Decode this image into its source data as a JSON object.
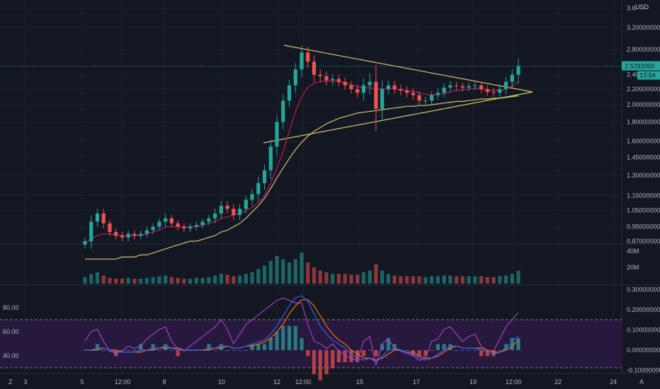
{
  "chart_data": {
    "type": "candlestick",
    "currency": "USD",
    "colors": {
      "background": "#131722",
      "up": "#26a69a",
      "down": "#ef5350",
      "ma_fast": "#c2185b",
      "ma_slow": "#d4c56a",
      "trendline": "#d4c56a",
      "rsi": "#b040d0",
      "osc_fast": "#2962ff",
      "osc_slow": "#ff6d00",
      "band_fill": "#2a1a40",
      "price_tag": "#26a69a"
    },
    "x_ticks": [
      "3",
      "5",
      "12:00",
      "8",
      "10",
      "12",
      "12:00",
      "15",
      "17",
      "19",
      "12:00",
      "22",
      "24"
    ],
    "price_axis": {
      "scale": "log",
      "ticks": [
        "3.6",
        "3.20000000",
        "2.80000000",
        "2.40",
        "2.20000000",
        "2.00000000",
        "1.80000000",
        "1.60000000",
        "1.45000000",
        "1.30000000",
        "1.15000000",
        "1.05000000",
        "0.95000000",
        "0.87000000"
      ],
      "last_price": "2.5292000",
      "countdown": "13:54"
    },
    "volume_axis": {
      "ticks": [
        "40M",
        "20M"
      ]
    },
    "rsi_axis": {
      "ticks": [
        "80.00",
        "60.00",
        "40.00"
      ],
      "band": [
        70,
        30
      ]
    },
    "osc_axis": {
      "ticks": [
        "0.30000000",
        "0.20000000",
        "0.10000000",
        "0.00000000",
        "-0.10000000"
      ]
    },
    "price_series": {
      "close": [
        0.87,
        0.98,
        1.03,
        0.97,
        0.92,
        0.9,
        0.89,
        0.91,
        0.9,
        0.91,
        0.93,
        0.95,
        0.98,
        1.0,
        0.97,
        0.95,
        0.94,
        0.95,
        0.96,
        0.98,
        1.0,
        1.03,
        1.08,
        1.06,
        1.02,
        1.06,
        1.12,
        1.16,
        1.24,
        1.34,
        1.55,
        1.8,
        2.05,
        2.25,
        2.48,
        2.75,
        2.6,
        2.4,
        2.38,
        2.32,
        2.34,
        2.3,
        2.25,
        2.2,
        2.15,
        2.25,
        2.3,
        1.95,
        2.2,
        2.25,
        2.2,
        2.18,
        2.15,
        2.12,
        2.05,
        2.05,
        2.12,
        2.15,
        2.22,
        2.25,
        2.24,
        2.22,
        2.24,
        2.25,
        2.2,
        2.16,
        2.15,
        2.2,
        2.3,
        2.4,
        2.53
      ],
      "wick": [
        0.02,
        0.04,
        0.03,
        0.03,
        0.02,
        0.02,
        0.02,
        0.02,
        0.02,
        0.02,
        0.02,
        0.02,
        0.02,
        0.03,
        0.02,
        0.02,
        0.02,
        0.02,
        0.02,
        0.02,
        0.02,
        0.03,
        0.03,
        0.03,
        0.03,
        0.03,
        0.03,
        0.04,
        0.05,
        0.05,
        0.07,
        0.08,
        0.08,
        0.08,
        0.1,
        0.12,
        0.1,
        0.1,
        0.08,
        0.07,
        0.07,
        0.06,
        0.06,
        0.06,
        0.06,
        0.1,
        0.12,
        0.25,
        0.12,
        0.07,
        0.06,
        0.06,
        0.06,
        0.06,
        0.05,
        0.05,
        0.05,
        0.06,
        0.06,
        0.06,
        0.05,
        0.05,
        0.05,
        0.05,
        0.05,
        0.05,
        0.05,
        0.06,
        0.07,
        0.08,
        0.12
      ],
      "ma_fast": [
        0.86,
        0.88,
        0.9,
        0.91,
        0.91,
        0.9,
        0.9,
        0.9,
        0.9,
        0.9,
        0.91,
        0.92,
        0.93,
        0.95,
        0.95,
        0.95,
        0.95,
        0.95,
        0.95,
        0.96,
        0.97,
        0.98,
        1.0,
        1.01,
        1.02,
        1.03,
        1.05,
        1.07,
        1.1,
        1.15,
        1.24,
        1.36,
        1.5,
        1.7,
        1.92,
        2.1,
        2.22,
        2.28,
        2.3,
        2.31,
        2.31,
        2.3,
        2.28,
        2.26,
        2.23,
        2.22,
        2.22,
        2.2,
        2.2,
        2.2,
        2.2,
        2.19,
        2.18,
        2.17,
        2.15,
        2.13,
        2.12,
        2.13,
        2.14,
        2.16,
        2.18,
        2.19,
        2.2,
        2.21,
        2.2,
        2.19,
        2.18,
        2.18,
        2.2,
        2.24,
        2.3
      ],
      "ma_slow": [
        0.78,
        0.78,
        0.78,
        0.78,
        0.78,
        0.78,
        0.79,
        0.79,
        0.79,
        0.8,
        0.8,
        0.81,
        0.82,
        0.83,
        0.84,
        0.85,
        0.86,
        0.87,
        0.87,
        0.88,
        0.89,
        0.9,
        0.92,
        0.93,
        0.95,
        0.97,
        1.0,
        1.04,
        1.08,
        1.13,
        1.2,
        1.28,
        1.36,
        1.44,
        1.52,
        1.59,
        1.65,
        1.7,
        1.74,
        1.78,
        1.81,
        1.84,
        1.86,
        1.88,
        1.9,
        1.91,
        1.92,
        1.93,
        1.94,
        1.95,
        1.96,
        1.97,
        1.98,
        1.98,
        1.99,
        1.99,
        2.0,
        2.01,
        2.02,
        2.03,
        2.04,
        2.04,
        2.05,
        2.06,
        2.07,
        2.07,
        2.08,
        2.08,
        2.09,
        2.1,
        2.11
      ],
      "volume": [
        8,
        12,
        14,
        10,
        7,
        6,
        6,
        7,
        6,
        6,
        7,
        8,
        9,
        10,
        8,
        7,
        6,
        6,
        7,
        7,
        8,
        10,
        12,
        11,
        9,
        10,
        12,
        14,
        18,
        22,
        28,
        34,
        30,
        26,
        30,
        38,
        26,
        20,
        16,
        14,
        12,
        12,
        12,
        11,
        11,
        14,
        16,
        24,
        16,
        12,
        10,
        9,
        9,
        9,
        9,
        8,
        9,
        9,
        10,
        10,
        9,
        9,
        9,
        9,
        9,
        8,
        8,
        9,
        10,
        12,
        16
      ],
      "rsi": [
        52,
        60,
        62,
        52,
        44,
        42,
        44,
        48,
        46,
        48,
        54,
        58,
        62,
        64,
        52,
        46,
        44,
        48,
        52,
        56,
        60,
        64,
        70,
        62,
        50,
        58,
        66,
        70,
        74,
        78,
        82,
        86,
        88,
        86,
        84,
        84,
        66,
        52,
        50,
        46,
        50,
        44,
        40,
        38,
        36,
        52,
        56,
        32,
        50,
        54,
        46,
        44,
        42,
        40,
        36,
        38,
        52,
        54,
        62,
        64,
        58,
        52,
        56,
        58,
        48,
        44,
        44,
        54,
        64,
        70,
        76
      ],
      "osc_fast": [
        0.0,
        0.0,
        0.01,
        0.01,
        0.0,
        -0.01,
        -0.01,
        -0.01,
        -0.01,
        0.0,
        0.0,
        0.01,
        0.01,
        0.02,
        0.01,
        0.0,
        0.0,
        0.0,
        0.0,
        0.0,
        0.01,
        0.01,
        0.02,
        0.02,
        0.01,
        0.01,
        0.02,
        0.03,
        0.04,
        0.05,
        0.08,
        0.12,
        0.17,
        0.22,
        0.26,
        0.27,
        0.24,
        0.18,
        0.12,
        0.08,
        0.05,
        0.03,
        0.01,
        -0.02,
        -0.04,
        -0.05,
        -0.04,
        -0.06,
        -0.03,
        0.0,
        0.01,
        0.0,
        -0.01,
        -0.02,
        -0.04,
        -0.05,
        -0.04,
        -0.02,
        0.0,
        0.02,
        0.02,
        0.01,
        0.01,
        0.01,
        0.0,
        -0.01,
        -0.02,
        -0.01,
        0.01,
        0.04,
        0.07
      ],
      "osc_slow": [
        0.0,
        0.0,
        0.0,
        0.01,
        0.0,
        0.0,
        -0.01,
        -0.01,
        -0.01,
        -0.01,
        0.0,
        0.0,
        0.01,
        0.01,
        0.01,
        0.01,
        0.0,
        0.0,
        0.0,
        0.0,
        0.0,
        0.01,
        0.01,
        0.02,
        0.01,
        0.01,
        0.02,
        0.02,
        0.03,
        0.04,
        0.06,
        0.09,
        0.13,
        0.18,
        0.22,
        0.25,
        0.25,
        0.22,
        0.17,
        0.12,
        0.08,
        0.05,
        0.03,
        0.0,
        -0.02,
        -0.04,
        -0.04,
        -0.05,
        -0.04,
        -0.02,
        0.0,
        0.0,
        -0.01,
        -0.01,
        -0.03,
        -0.04,
        -0.04,
        -0.03,
        -0.01,
        0.01,
        0.02,
        0.01,
        0.01,
        0.01,
        0.01,
        0.0,
        -0.01,
        -0.01,
        0.0,
        0.02,
        0.05
      ]
    }
  }
}
